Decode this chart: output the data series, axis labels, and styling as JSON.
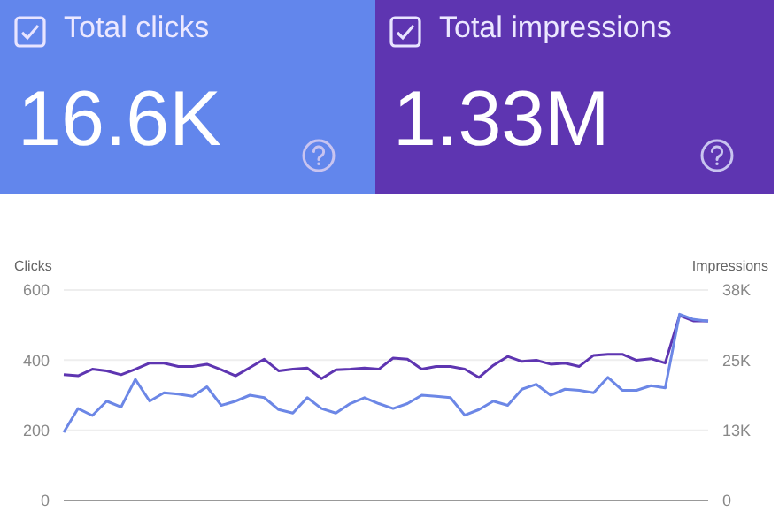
{
  "chart_data": [
    {
      "type": "other",
      "title": "Total clicks",
      "annotations": [
        "16.6K"
      ],
      "color": "#6286ec"
    },
    {
      "type": "other",
      "title": "Total impressions",
      "annotations": [
        "1.33M"
      ],
      "color": "#5e35b1"
    },
    {
      "type": "line",
      "categories": [
        null,
        null,
        null,
        null,
        null,
        null,
        null,
        null,
        null,
        null,
        null,
        null,
        null,
        null,
        null,
        null,
        null,
        null,
        null,
        null,
        null,
        null,
        null,
        null,
        null,
        null,
        null,
        null,
        null,
        null,
        null,
        null,
        null,
        null,
        null,
        null,
        null,
        null,
        null,
        null,
        null,
        null,
        null,
        null,
        null,
        null
      ],
      "ylabel": "Clicks",
      "y2label": "Impressions",
      "ylim": [
        0,
        600
      ],
      "yticks": [
        0,
        200,
        400,
        600
      ],
      "y2lim": [
        0,
        38000
      ],
      "y2ticks": [
        0,
        {
          "value": 12667,
          "label": "13K"
        },
        {
          "value": 25333,
          "label": "25K"
        },
        {
          "value": 38000,
          "label": "38K"
        }
      ],
      "grid": "y",
      "series": [
        {
          "color": "#5e35b1",
          "axis": "y2",
          "values": [
            22700,
            22500,
            23700,
            23400,
            22700,
            23700,
            24800,
            24800,
            24200,
            24200,
            24600,
            23600,
            22500,
            24000,
            25500,
            23400,
            23700,
            23900,
            22000,
            23600,
            23700,
            23900,
            23700,
            25700,
            25500,
            23700,
            24200,
            24200,
            23700,
            22200,
            24400,
            26000,
            25100,
            25300,
            24600,
            24800,
            24200,
            26200,
            26400,
            26400,
            25300,
            25600,
            24800,
            33400,
            32400,
            32400
          ]
        },
        {
          "color": "#6c87e6",
          "values": [
            194,
            262,
            242,
            283,
            266,
            345,
            283,
            307,
            303,
            297,
            324,
            271,
            283,
            300,
            293,
            259,
            249,
            293,
            262,
            249,
            276,
            293,
            276,
            262,
            276,
            300,
            297,
            293,
            243,
            259,
            283,
            271,
            317,
            331,
            300,
            317,
            314,
            307,
            351,
            314,
            314,
            327,
            321,
            531,
            516,
            511
          ]
        }
      ]
    }
  ]
}
